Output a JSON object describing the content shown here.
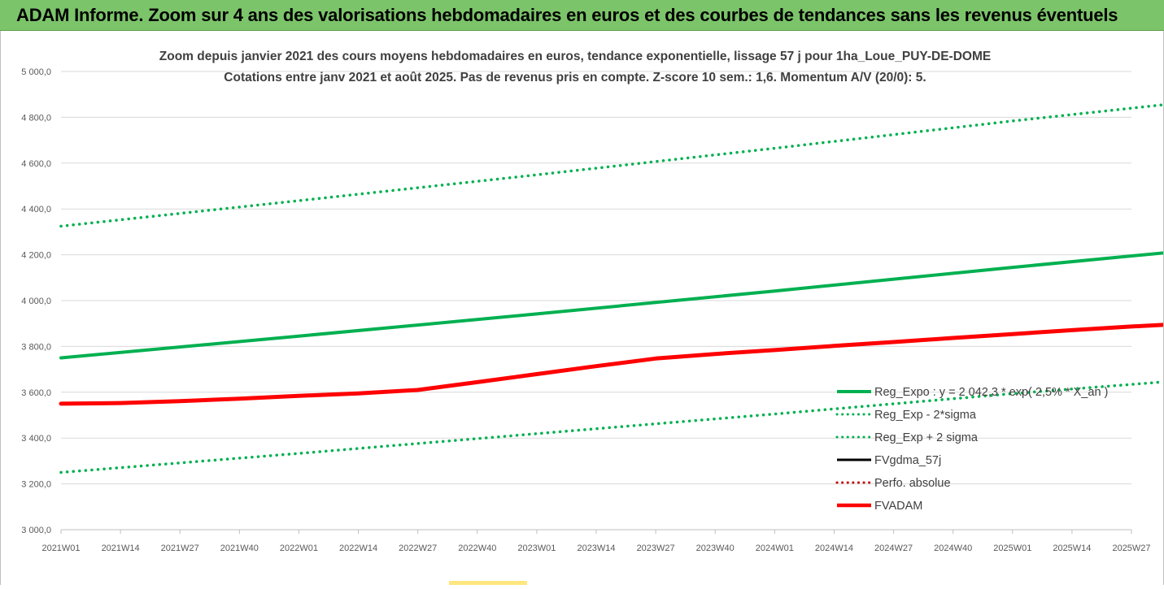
{
  "banner": {
    "title": "ADAM Informe. Zoom sur 4 ans des valorisations hebdomadaires en euros et des courbes de tendances sans les revenus éventuels"
  },
  "colors": {
    "banner_bg": "#7cc46a",
    "green": "#00b050",
    "red": "#ff0000",
    "black": "#000000",
    "grid": "#d9d9d9"
  },
  "chart_data": {
    "type": "line",
    "title": "Zoom depuis janvier 2021 des cours moyens hebdomadaires en euros, tendance exponentielle, lissage 57 j pour 1ha_Loue_PUY-DE-DOME",
    "subtitle": "Cotations entre janv 2021 et août 2025.  Pas de revenus pris en compte. Z-score 10 sem.: 1,6. Momentum A/V (20/0): 5.",
    "xlabel": "",
    "ylabel": "",
    "ylim": [
      3000,
      5000
    ],
    "yticks": [
      "3 000,0",
      "3 200,0",
      "3 400,0",
      "3 600,0",
      "3 800,0",
      "4 000,0",
      "4 200,0",
      "4 400,0",
      "4 600,0",
      "4 800,0",
      "5 000,0"
    ],
    "xticks": [
      "2021W01",
      "2021W14",
      "2021W27",
      "2021W40",
      "2022W01",
      "2022W14",
      "2022W27",
      "2022W40",
      "2023W01",
      "2023W14",
      "2023W27",
      "2023W40",
      "2024W01",
      "2024W14",
      "2024W27",
      "2024W40",
      "2025W01",
      "2025W14",
      "2025W27"
    ],
    "grid": true,
    "legend_position": "right",
    "series": [
      {
        "name": "Reg_Expo : y = 2 042,3 * exp( 2,5% * X_an )",
        "color": "#00b050",
        "style": "solid",
        "width": 4,
        "x": [
          "2021W01",
          "2022W01",
          "2023W01",
          "2024W01",
          "2025W01",
          "2025W34"
        ],
        "values": [
          3750,
          3845,
          3942,
          4042,
          4145,
          4208
        ]
      },
      {
        "name": "Reg_Exp - 2*sigma",
        "color": "#00b050",
        "style": "dotted",
        "width": 3.5,
        "x": [
          "2021W01",
          "2022W01",
          "2023W01",
          "2024W01",
          "2025W01",
          "2025W34"
        ],
        "values": [
          3250,
          3333,
          3419,
          3505,
          3594,
          3645
        ]
      },
      {
        "name": "Reg_Exp + 2 sigma",
        "color": "#00b050",
        "style": "dotted",
        "width": 3.5,
        "x": [
          "2021W01",
          "2022W01",
          "2023W01",
          "2024W01",
          "2025W01",
          "2025W34"
        ],
        "values": [
          4325,
          4436,
          4549,
          4665,
          4784,
          4855
        ]
      },
      {
        "name": "FVgdma_57j",
        "color": "#000000",
        "style": "solid",
        "width": 3,
        "x": [
          "2021W01",
          "2021W14",
          "2021W27",
          "2021W40",
          "2022W01",
          "2022W14",
          "2022W27",
          "2022W40",
          "2023W01",
          "2023W14",
          "2023W27",
          "2023W40",
          "2024W01",
          "2024W14",
          "2024W27",
          "2024W40",
          "2025W01",
          "2025W14",
          "2025W27",
          "2025W34"
        ],
        "values": [
          3550,
          3553,
          3562,
          3573,
          3585,
          3596,
          3611,
          3645,
          3680,
          3715,
          3748,
          3768,
          3785,
          3803,
          3820,
          3838,
          3855,
          3872,
          3888,
          3895
        ]
      },
      {
        "name": "Perfo. absolue",
        "color": "#c00000",
        "style": "dotted",
        "width": 2,
        "x": [],
        "values": []
      },
      {
        "name": "FVADAM",
        "color": "#ff0000",
        "style": "solid",
        "width": 5,
        "x": [
          "2021W01",
          "2021W14",
          "2021W27",
          "2021W40",
          "2022W01",
          "2022W14",
          "2022W27",
          "2022W40",
          "2023W01",
          "2023W14",
          "2023W27",
          "2023W40",
          "2024W01",
          "2024W14",
          "2024W27",
          "2024W40",
          "2025W01",
          "2025W14",
          "2025W27",
          "2025W34"
        ],
        "values": [
          3550,
          3553,
          3561,
          3572,
          3584,
          3595,
          3610,
          3644,
          3679,
          3714,
          3747,
          3767,
          3784,
          3802,
          3819,
          3837,
          3854,
          3871,
          3887,
          3894
        ]
      }
    ]
  }
}
